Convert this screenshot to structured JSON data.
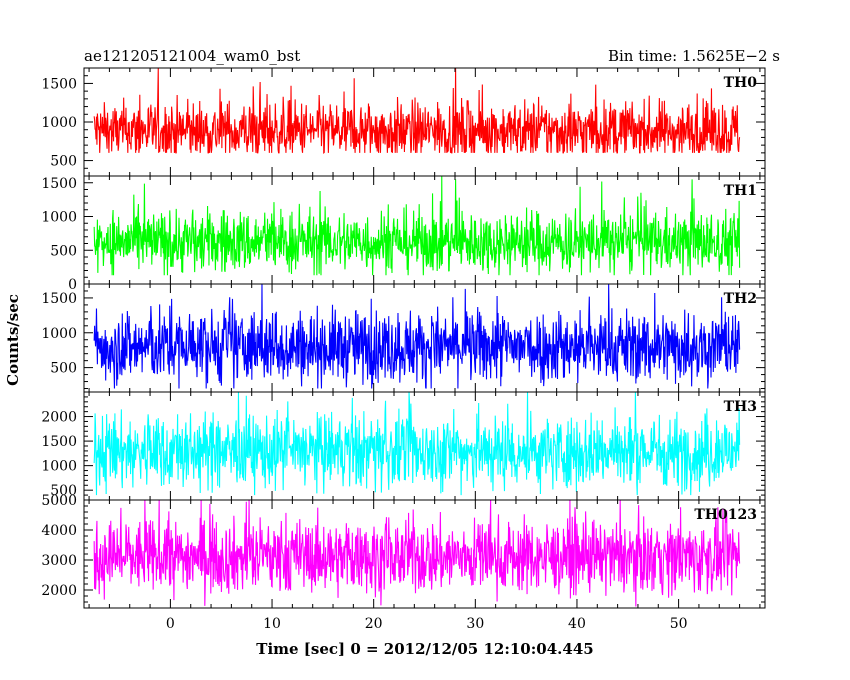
{
  "chart_data": {
    "type": "line",
    "title_left": "ae121205121004_wam0_bst",
    "title_right": "Bin time: 1.5625E−2 s",
    "xlabel": "Time [sec] 0 = 2012/12/05 12:10:04.445",
    "ylabel": "Counts/sec",
    "xlim": [
      -8.5,
      58.5
    ],
    "x_ticks": [
      0,
      10,
      20,
      30,
      40,
      50
    ],
    "x_tick_labels": [
      "0",
      "10",
      "20",
      "30",
      "40",
      "50"
    ],
    "data_x_range": [
      -7.5,
      56.0
    ],
    "grid": false,
    "panels": [
      {
        "label": "TH0",
        "color": "#ff0000",
        "ylim": [
          300,
          1700
        ],
        "y_ticks": [
          500,
          1000,
          1500
        ],
        "y_tick_labels": [
          "500",
          "1000",
          "1500"
        ],
        "mean": 880,
        "spread": 190,
        "min": 600,
        "max": 1700
      },
      {
        "label": "TH1",
        "color": "#00ff00",
        "ylim": [
          0,
          1600
        ],
        "y_ticks": [
          0,
          500,
          1000,
          1500
        ],
        "y_tick_labels": [
          "0",
          "500",
          "1000",
          "1500"
        ],
        "mean": 620,
        "spread": 230,
        "min": 130,
        "max": 1600
      },
      {
        "label": "TH2",
        "color": "#0000ff",
        "ylim": [
          150,
          1700
        ],
        "y_ticks": [
          500,
          1000,
          1500
        ],
        "y_tick_labels": [
          "500",
          "1000",
          "1500"
        ],
        "mean": 800,
        "spread": 260,
        "min": 200,
        "max": 1700
      },
      {
        "label": "TH3",
        "color": "#00ffff",
        "ylim": [
          300,
          2500
        ],
        "y_ticks": [
          500,
          1000,
          1500,
          2000
        ],
        "y_tick_labels": [
          "500",
          "1000",
          "1500",
          "2000"
        ],
        "mean": 1280,
        "spread": 370,
        "min": 400,
        "max": 2500
      },
      {
        "label": "TH0123",
        "color": "#ff00ff",
        "ylim": [
          1400,
          5000
        ],
        "y_ticks": [
          2000,
          3000,
          4000,
          5000
        ],
        "y_tick_labels": [
          "2000",
          "3000",
          "4000",
          "5000"
        ],
        "mean": 3100,
        "spread": 600,
        "min": 1450,
        "max": 5000
      }
    ]
  }
}
